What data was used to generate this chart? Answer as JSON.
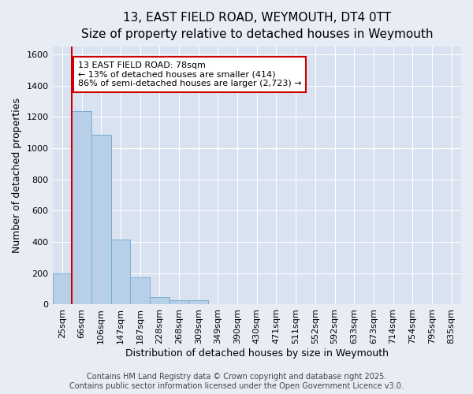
{
  "title_line1": "13, EAST FIELD ROAD, WEYMOUTH, DT4 0TT",
  "title_line2": "Size of property relative to detached houses in Weymouth",
  "xlabel": "Distribution of detached houses by size in Weymouth",
  "ylabel": "Number of detached properties",
  "categories": [
    "25sqm",
    "66sqm",
    "106sqm",
    "147sqm",
    "187sqm",
    "228sqm",
    "268sqm",
    "309sqm",
    "349sqm",
    "390sqm",
    "430sqm",
    "471sqm",
    "511sqm",
    "552sqm",
    "592sqm",
    "633sqm",
    "673sqm",
    "714sqm",
    "754sqm",
    "795sqm",
    "835sqm"
  ],
  "values": [
    200,
    1235,
    1085,
    415,
    175,
    50,
    25,
    25,
    0,
    0,
    0,
    0,
    0,
    0,
    0,
    0,
    0,
    0,
    0,
    0,
    0
  ],
  "bar_color": "#b8cfe8",
  "bar_edge_color": "#7aadd4",
  "vline_color": "#cc0000",
  "ylim": [
    0,
    1650
  ],
  "yticks": [
    0,
    200,
    400,
    600,
    800,
    1000,
    1200,
    1400,
    1600
  ],
  "annotation_text": "13 EAST FIELD ROAD: 78sqm\n← 13% of detached houses are smaller (414)\n86% of semi-detached houses are larger (2,723) →",
  "annotation_box_color": "#ffffff",
  "annotation_box_edge": "#cc0000",
  "footer_line1": "Contains HM Land Registry data © Crown copyright and database right 2025.",
  "footer_line2": "Contains public sector information licensed under the Open Government Licence v3.0.",
  "background_color": "#e8edf5",
  "plot_background_color": "#d8e2f0",
  "grid_color": "#ffffff",
  "title_fontsize": 11,
  "subtitle_fontsize": 10,
  "axis_label_fontsize": 9,
  "tick_fontsize": 8,
  "annot_fontsize": 8,
  "footer_fontsize": 7
}
